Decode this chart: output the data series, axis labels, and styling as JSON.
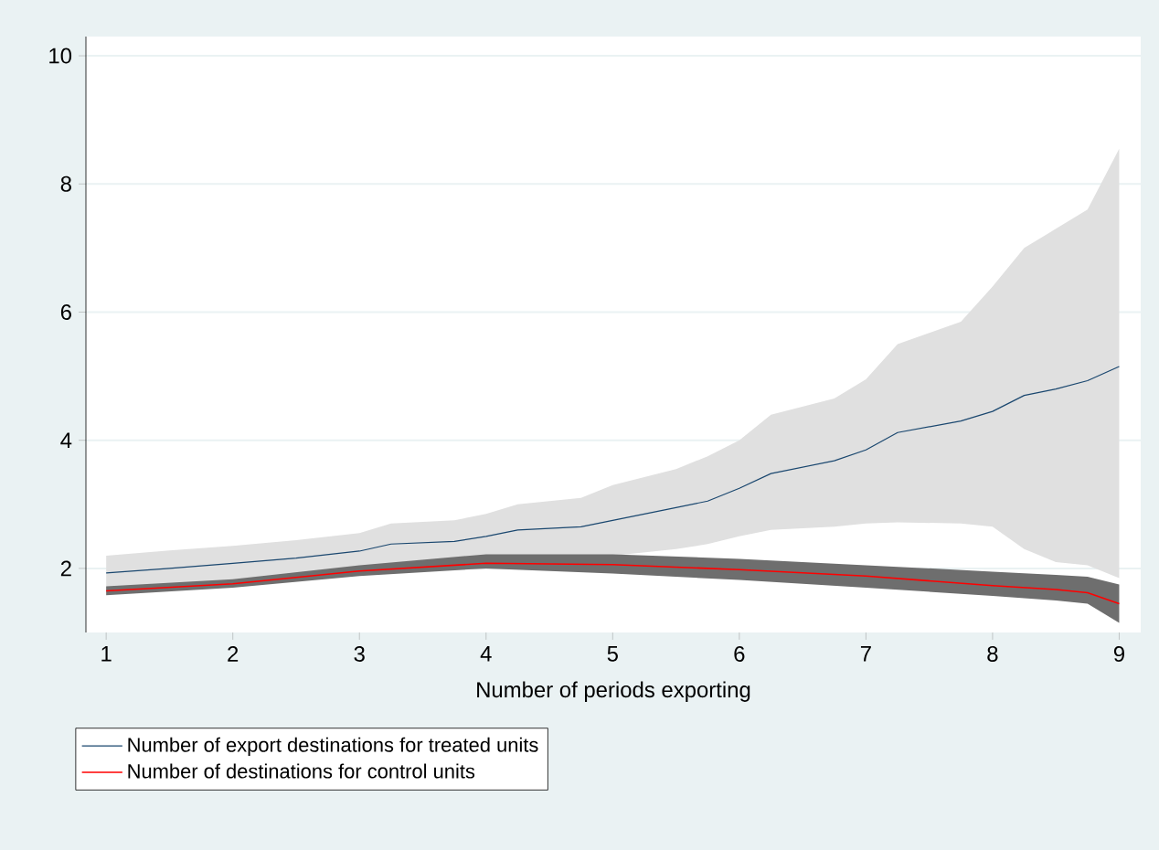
{
  "chart_data": {
    "type": "line",
    "xlabel": "Number of periods exporting",
    "xlim": [
      0.84,
      9.17
    ],
    "ylim": [
      1,
      10.3
    ],
    "xticks": [
      1,
      2,
      3,
      4,
      5,
      6,
      7,
      8,
      9
    ],
    "yticks": [
      2,
      4,
      6,
      8,
      10
    ],
    "grid": "y",
    "legend": "bottom",
    "marker": "none",
    "line_style": "solid",
    "series": [
      {
        "name": "Number of export destinations for treated units",
        "color": "#1a476f",
        "x": [
          1,
          1.5,
          2,
          2.5,
          3,
          3.25,
          3.75,
          4,
          4.25,
          4.75,
          5,
          5.5,
          5.75,
          6,
          6.25,
          6.75,
          7,
          7.25,
          7.75,
          8,
          8.25,
          8.5,
          8.75,
          9
        ],
        "values": [
          1.93,
          2.0,
          2.08,
          2.16,
          2.27,
          2.38,
          2.42,
          2.5,
          2.6,
          2.65,
          2.75,
          2.95,
          3.05,
          3.25,
          3.48,
          3.68,
          3.85,
          4.12,
          4.3,
          4.45,
          4.7,
          4.8,
          4.93,
          5.15
        ],
        "upper": [
          2.2,
          2.28,
          2.35,
          2.44,
          2.55,
          2.7,
          2.75,
          2.85,
          3.0,
          3.1,
          3.3,
          3.55,
          3.75,
          4.0,
          4.4,
          4.65,
          4.95,
          5.5,
          5.85,
          6.4,
          7.0,
          7.3,
          7.6,
          8.55
        ],
        "lower": [
          1.65,
          1.7,
          1.75,
          1.84,
          1.95,
          2.0,
          2.03,
          2.05,
          2.08,
          2.1,
          2.2,
          2.3,
          2.38,
          2.5,
          2.6,
          2.65,
          2.7,
          2.72,
          2.7,
          2.65,
          2.3,
          2.1,
          2.05,
          1.85
        ]
      },
      {
        "name": "Number of destinations for control units",
        "color": "#ff0000",
        "x": [
          1,
          2,
          3,
          4,
          5,
          6,
          7,
          8,
          8.5,
          8.75,
          9
        ],
        "values": [
          1.65,
          1.76,
          1.96,
          2.08,
          2.06,
          1.98,
          1.88,
          1.73,
          1.67,
          1.62,
          1.45
        ],
        "upper": [
          1.72,
          1.83,
          2.05,
          2.22,
          2.22,
          2.15,
          2.05,
          1.95,
          1.9,
          1.87,
          1.75
        ],
        "lower": [
          1.58,
          1.7,
          1.88,
          2.0,
          1.92,
          1.82,
          1.7,
          1.57,
          1.5,
          1.45,
          1.15
        ]
      }
    ]
  }
}
